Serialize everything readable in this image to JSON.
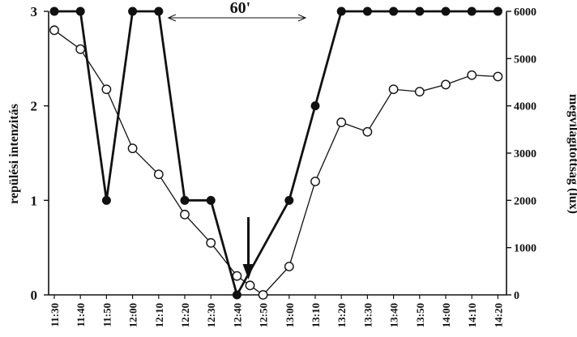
{
  "chart_data": {
    "type": "line",
    "categories": [
      "11:30",
      "11:40",
      "11:50",
      "12:00",
      "12:10",
      "12:20",
      "12:30",
      "12:40",
      "12:50",
      "13:00",
      "13:10",
      "13:20",
      "13:30",
      "13:40",
      "13:50",
      "14:00",
      "14:10",
      "14:20"
    ],
    "series": [
      {
        "axis": "left",
        "marker": "filled-circle",
        "values": [
          3,
          3,
          1,
          3,
          3,
          1,
          1,
          0,
          null,
          1,
          2,
          3,
          3,
          3,
          3,
          3,
          3,
          3
        ],
        "x": [
          "11:30",
          "11:40",
          "11:50",
          "12:00",
          "12:10",
          "12:20",
          "12:30",
          "12:40",
          "12:50",
          "13:00",
          "13:10",
          "13:20",
          "13:30",
          "13:40",
          "13:50",
          "14:00",
          "14:10",
          "14:20"
        ]
      },
      {
        "axis": "right",
        "marker": "open-circle",
        "points": [
          {
            "x": "11:30",
            "y": 5600
          },
          {
            "x": "11:40",
            "y": 5200
          },
          {
            "x": "11:50",
            "y": 4350
          },
          {
            "x": "12:00",
            "y": 3100
          },
          {
            "x": "12:10",
            "y": 2550
          },
          {
            "x": "12:20",
            "y": 1700
          },
          {
            "x": "12:30",
            "y": 1100
          },
          {
            "x": "12:40",
            "y": 400
          },
          {
            "x": "12:45",
            "y": 200
          },
          {
            "x": "12:50",
            "y": 0
          },
          {
            "x": "13:00",
            "y": 600
          },
          {
            "x": "13:10",
            "y": 2400
          },
          {
            "x": "13:20",
            "y": 3650
          },
          {
            "x": "13:30",
            "y": 3450
          },
          {
            "x": "13:40",
            "y": 4350
          },
          {
            "x": "13:50",
            "y": 4300
          },
          {
            "x": "14:00",
            "y": 4450
          },
          {
            "x": "14:10",
            "y": 4650
          },
          {
            "x": "14:20",
            "y": 4620
          }
        ]
      }
    ],
    "ylabel_left": "repülési intenzitás",
    "ylabel_right": "megvilágítottság (lux)",
    "yticks_left": [
      "0",
      "1",
      "2",
      "3"
    ],
    "yticks_right": [
      "0",
      "1000",
      "2000",
      "3000",
      "4000",
      "5000",
      "6000"
    ],
    "ylim_left": [
      0,
      3
    ],
    "ylim_right": [
      0,
      6000
    ],
    "annotations": [
      {
        "text": "60'",
        "type": "double-arrow",
        "from": "12:10",
        "to": "13:10",
        "y_left": 3
      },
      {
        "text": "",
        "type": "down-arrow",
        "x": "12:45"
      }
    ],
    "grid": false,
    "colors": {
      "line": "#111111",
      "open_fill": "#ffffff"
    }
  }
}
